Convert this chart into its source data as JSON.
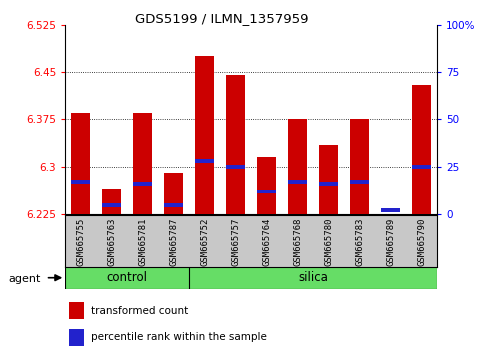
{
  "title": "GDS5199 / ILMN_1357959",
  "samples": [
    "GSM665755",
    "GSM665763",
    "GSM665781",
    "GSM665787",
    "GSM665752",
    "GSM665757",
    "GSM665764",
    "GSM665768",
    "GSM665780",
    "GSM665783",
    "GSM665789",
    "GSM665790"
  ],
  "groups": [
    "control",
    "control",
    "control",
    "control",
    "silica",
    "silica",
    "silica",
    "silica",
    "silica",
    "silica",
    "silica",
    "silica"
  ],
  "transformed_count": [
    6.385,
    6.265,
    6.385,
    6.29,
    6.475,
    6.445,
    6.315,
    6.375,
    6.335,
    6.375,
    6.225,
    6.43
  ],
  "percentile_rank": [
    17,
    5,
    16,
    5,
    28,
    25,
    12,
    17,
    16,
    17,
    2,
    25
  ],
  "ylim": [
    6.225,
    6.525
  ],
  "yticks": [
    6.225,
    6.3,
    6.375,
    6.45,
    6.525
  ],
  "right_yticks": [
    0,
    25,
    50,
    75,
    100
  ],
  "right_ytick_labels": [
    "0",
    "25",
    "50",
    "75",
    "100%"
  ],
  "bar_color_red": "#cc0000",
  "bar_color_blue": "#2222cc",
  "label_bg_color": "#c8c8c8",
  "group_bg_color": "#66dd66",
  "baseline": 6.225,
  "bar_width": 0.6,
  "blue_bar_thickness": 0.006,
  "control_n": 4,
  "silica_n": 8
}
